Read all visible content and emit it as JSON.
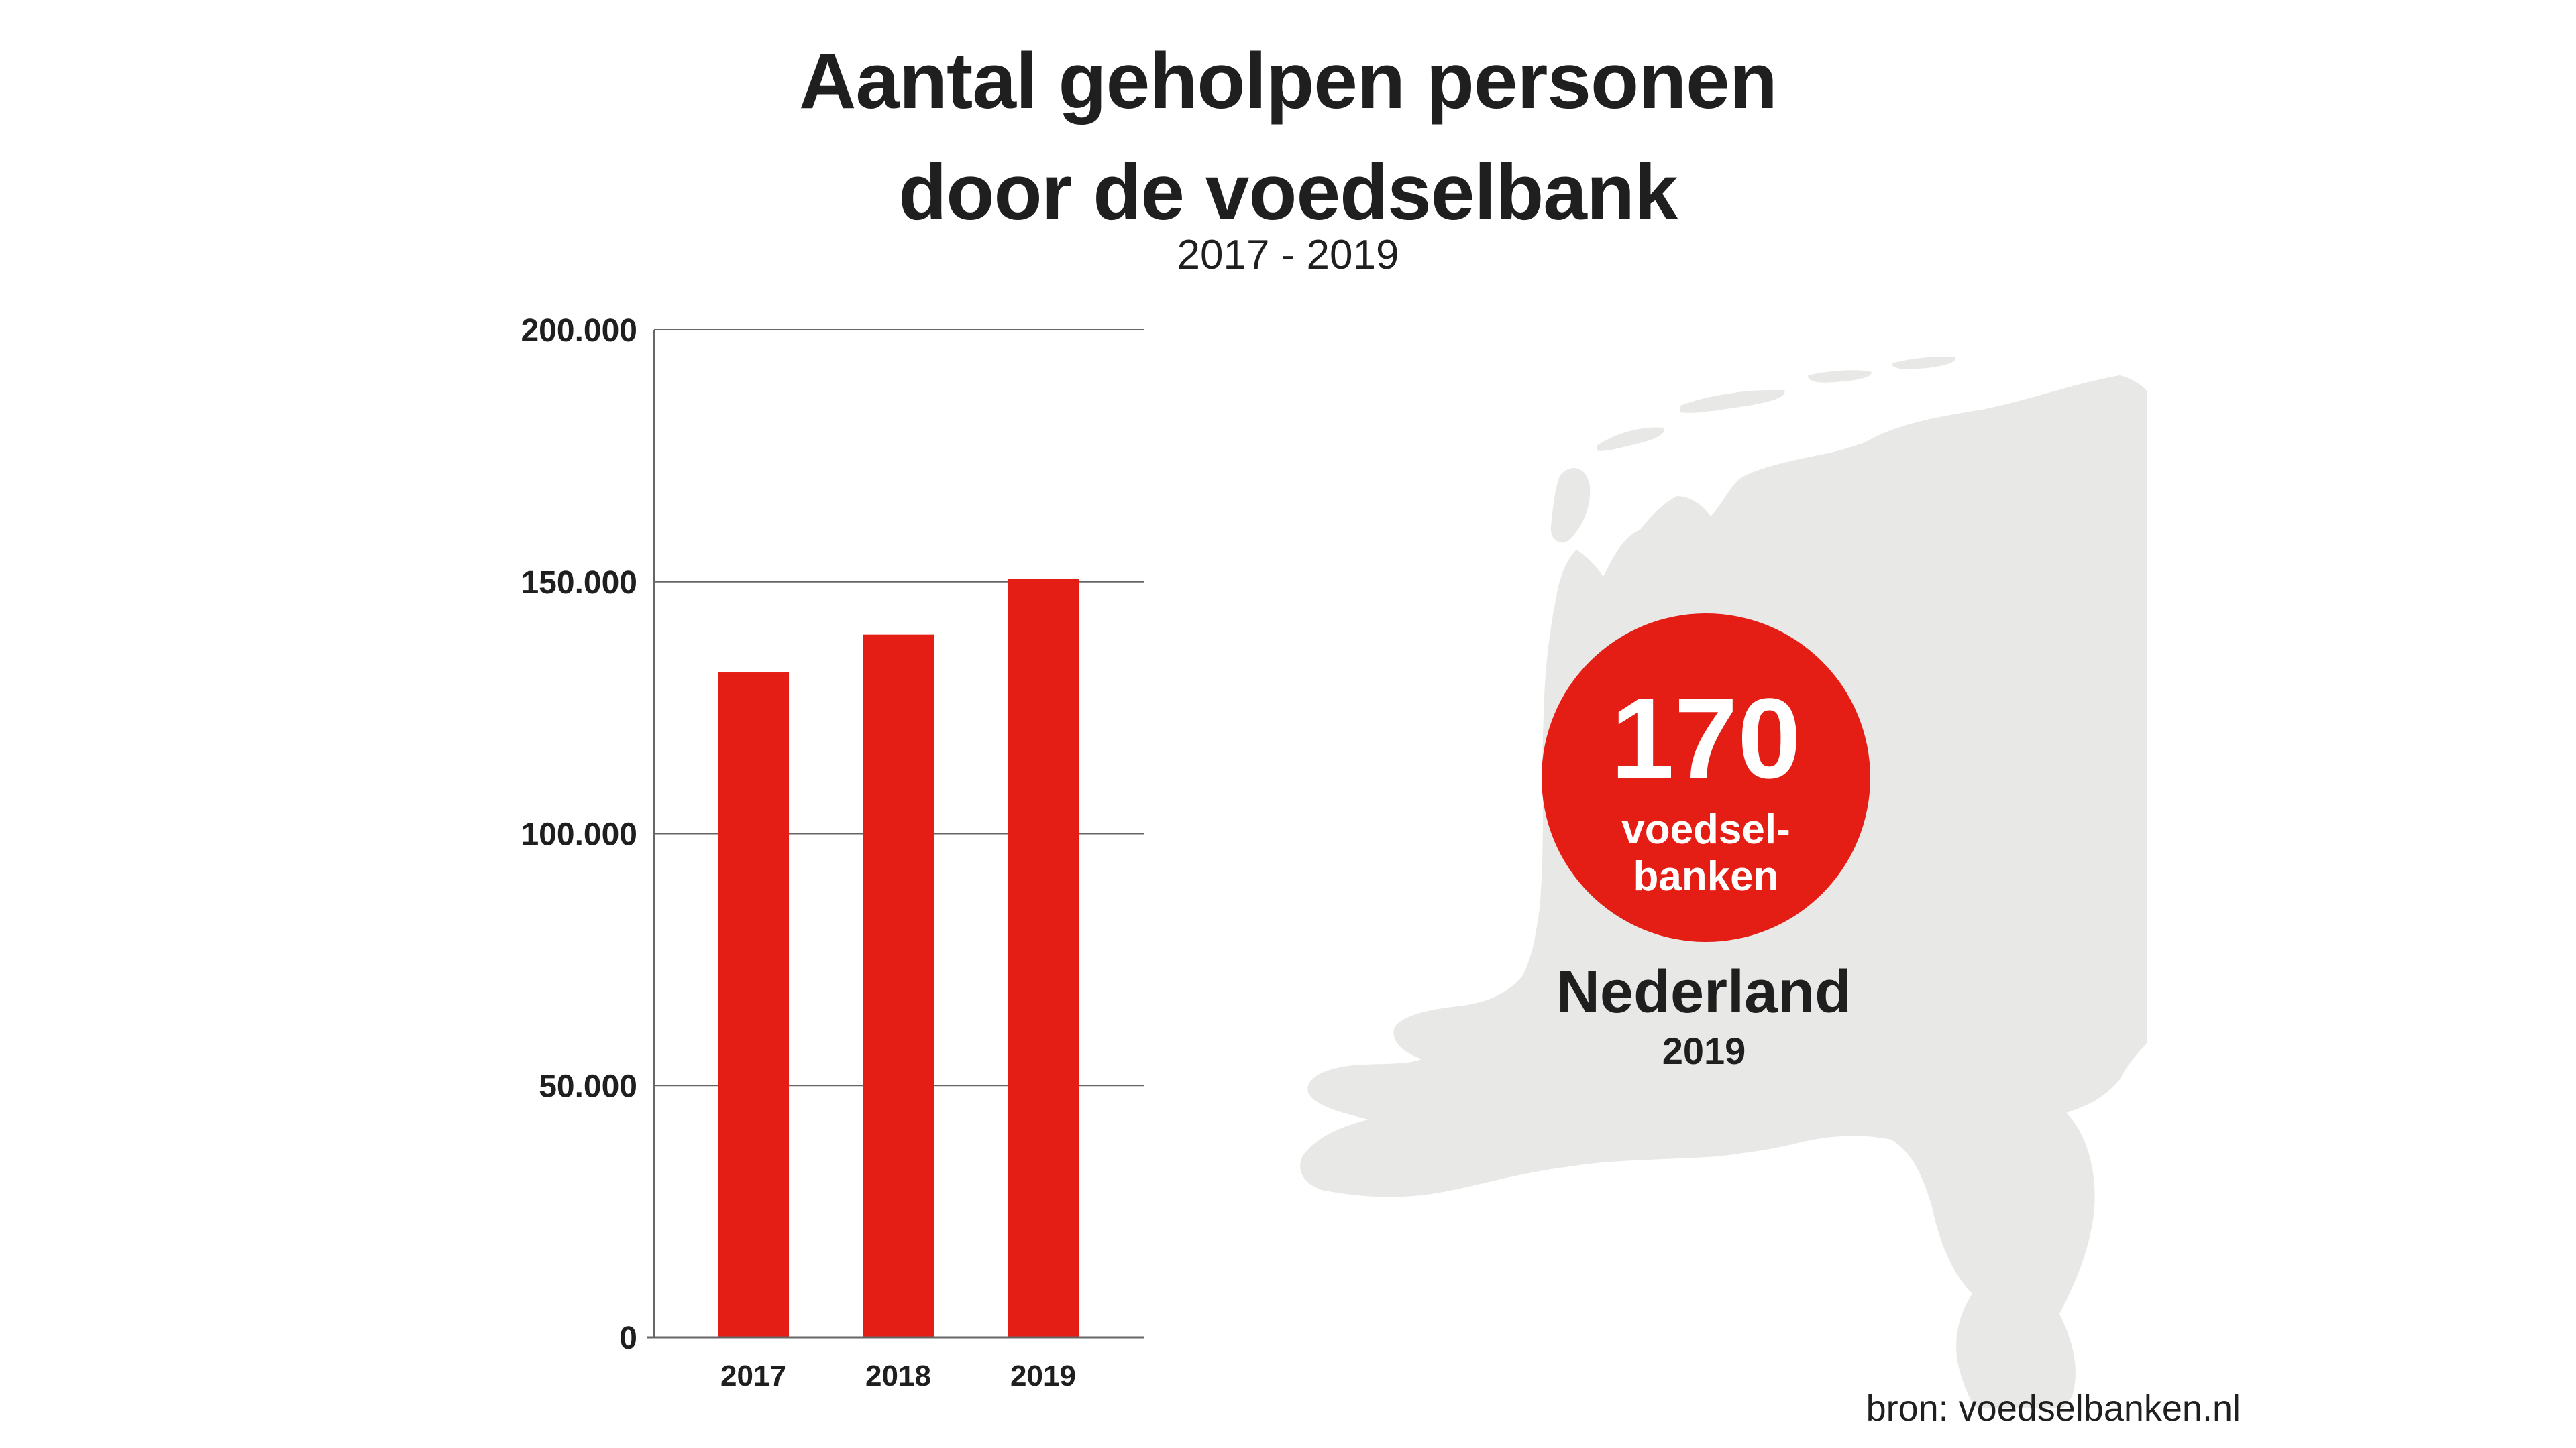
{
  "title": {
    "line1": "Aantal geholpen personen",
    "line2": "door de voedselbank"
  },
  "subtitle": "2017 - 2019",
  "colors": {
    "bar": "#e41e15",
    "badge": "#e41e15",
    "map": "#e8e8e6",
    "text": "#1f1f1f",
    "grid": "#666666"
  },
  "chart_data": {
    "type": "bar",
    "categories": [
      "2017",
      "2018",
      "2019"
    ],
    "values": [
      132000,
      139500,
      150500
    ],
    "ylim": [
      0,
      200000
    ],
    "yticks": [
      0,
      50000,
      100000,
      150000,
      200000
    ],
    "ytick_labels": [
      "0",
      "50.000",
      "100.000",
      "150.000",
      "200.000"
    ],
    "grid": "horizontal",
    "xlabel": "",
    "ylabel": ""
  },
  "map": {
    "icon": "netherlands-map-icon",
    "badge": {
      "number": "170",
      "label_line1": "voedsel-",
      "label_line2": "banken"
    },
    "country": "Nederland",
    "year": "2019"
  },
  "source": "bron: voedselbanken.nl"
}
